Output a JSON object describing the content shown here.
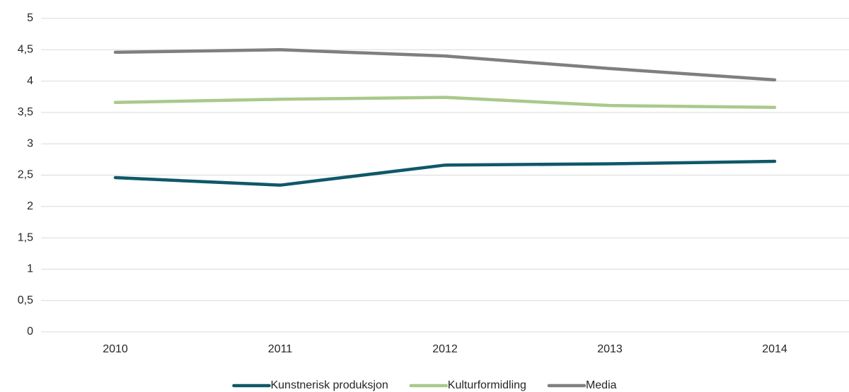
{
  "chart_data": {
    "type": "line",
    "categories": [
      "2010",
      "2011",
      "2012",
      "2013",
      "2014"
    ],
    "series": [
      {
        "name": "Kunstnerisk produksjon",
        "color": "#0f5868",
        "values": [
          2.46,
          2.34,
          2.66,
          2.68,
          2.72
        ]
      },
      {
        "name": "Kulturformidling",
        "color": "#a9c98b",
        "values": [
          3.66,
          3.71,
          3.74,
          3.61,
          3.58
        ]
      },
      {
        "name": "Media",
        "color": "#7f7f7f",
        "values": [
          4.46,
          4.5,
          4.4,
          4.2,
          4.02
        ]
      }
    ],
    "ylim": [
      0,
      5
    ],
    "yticks": [
      0,
      {
        "value": 0.5,
        "label": "0,5"
      },
      1,
      {
        "value": 1.5,
        "label": "1,5"
      },
      2,
      {
        "value": 2.5,
        "label": "2,5"
      },
      3,
      {
        "value": 3.5,
        "label": "3,5"
      },
      4,
      {
        "value": 4.5,
        "label": "4,5"
      },
      5
    ],
    "grid": true,
    "legend": "bottom"
  }
}
